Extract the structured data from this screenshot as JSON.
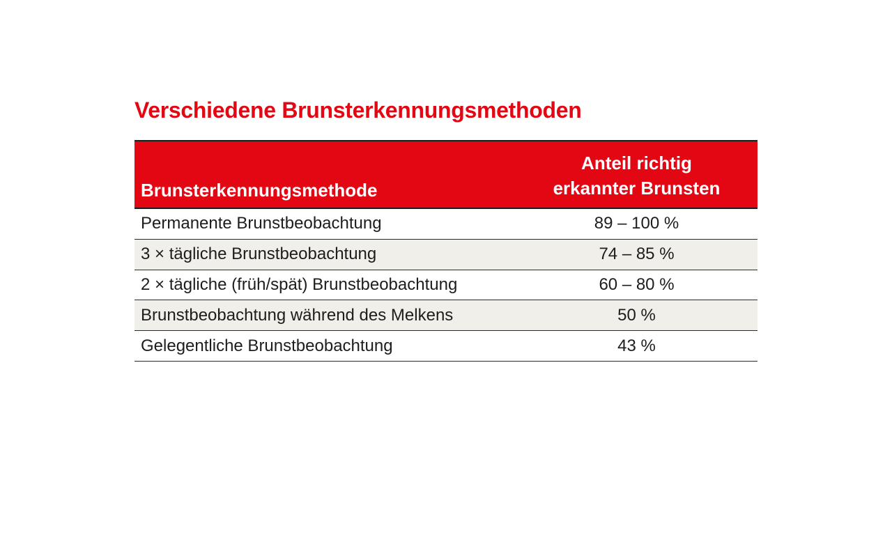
{
  "title": "Verschiedene Brunsterkennungsmethoden",
  "colors": {
    "accent_red": "#e30613",
    "alt_row_background": "#f0efea",
    "border_dark": "#1d1d1b",
    "header_text": "#ffffff",
    "body_text": "#1d1d1b",
    "page_background": "#ffffff"
  },
  "table": {
    "headers": {
      "method": "Brunsterkennungsmethode",
      "share_line1": "Anteil richtig",
      "share_line2": "erkannter Brunsten"
    },
    "rows": [
      {
        "method": "Permanente Brunstbeobachtung",
        "value": "89 – 100 %"
      },
      {
        "method": "3 × tägliche Brunstbeobachtung",
        "value": "74 – 85 %"
      },
      {
        "method": "2 × tägliche (früh/spät) Brunstbeobachtung",
        "value": "60 – 80 %"
      },
      {
        "method": "Brunstbeobachtung während des Melkens",
        "value": "50 %"
      },
      {
        "method": "Gelegentliche Brunstbeobachtung",
        "value": "43 %"
      }
    ]
  }
}
